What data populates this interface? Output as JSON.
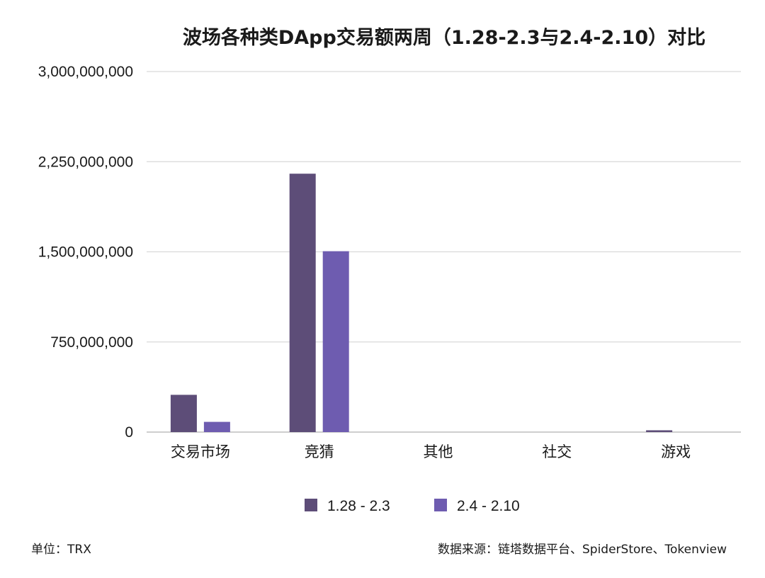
{
  "chart_data": {
    "type": "bar",
    "title": "波场各种类DApp交易额两周（1.28-2.3与2.4-2.10）对比",
    "categories": [
      "交易市场",
      "竞猜",
      "其他",
      "社交",
      "游戏"
    ],
    "series": [
      {
        "name": "1.28 - 2.3",
        "color": "#5d4d78",
        "values": [
          310000000,
          2150000000,
          0,
          0,
          15000000
        ]
      },
      {
        "name": "2.4 - 2.10",
        "color": "#6e5cb0",
        "values": [
          85000000,
          1505000000,
          0,
          0,
          0
        ]
      }
    ],
    "ylim": [
      0,
      3000000000
    ],
    "yticks": [
      "0",
      "750,000,000",
      "1,500,000,000",
      "2,250,000,000",
      "3,000,000,000"
    ],
    "ytick_values": [
      0,
      750000000,
      1500000000,
      2250000000,
      3000000000
    ],
    "grid": true,
    "legend_position": "bottom",
    "unit_note": "单位：TRX",
    "source_note": "数据来源：链塔数据平台、SpiderStore、Tokenview"
  }
}
